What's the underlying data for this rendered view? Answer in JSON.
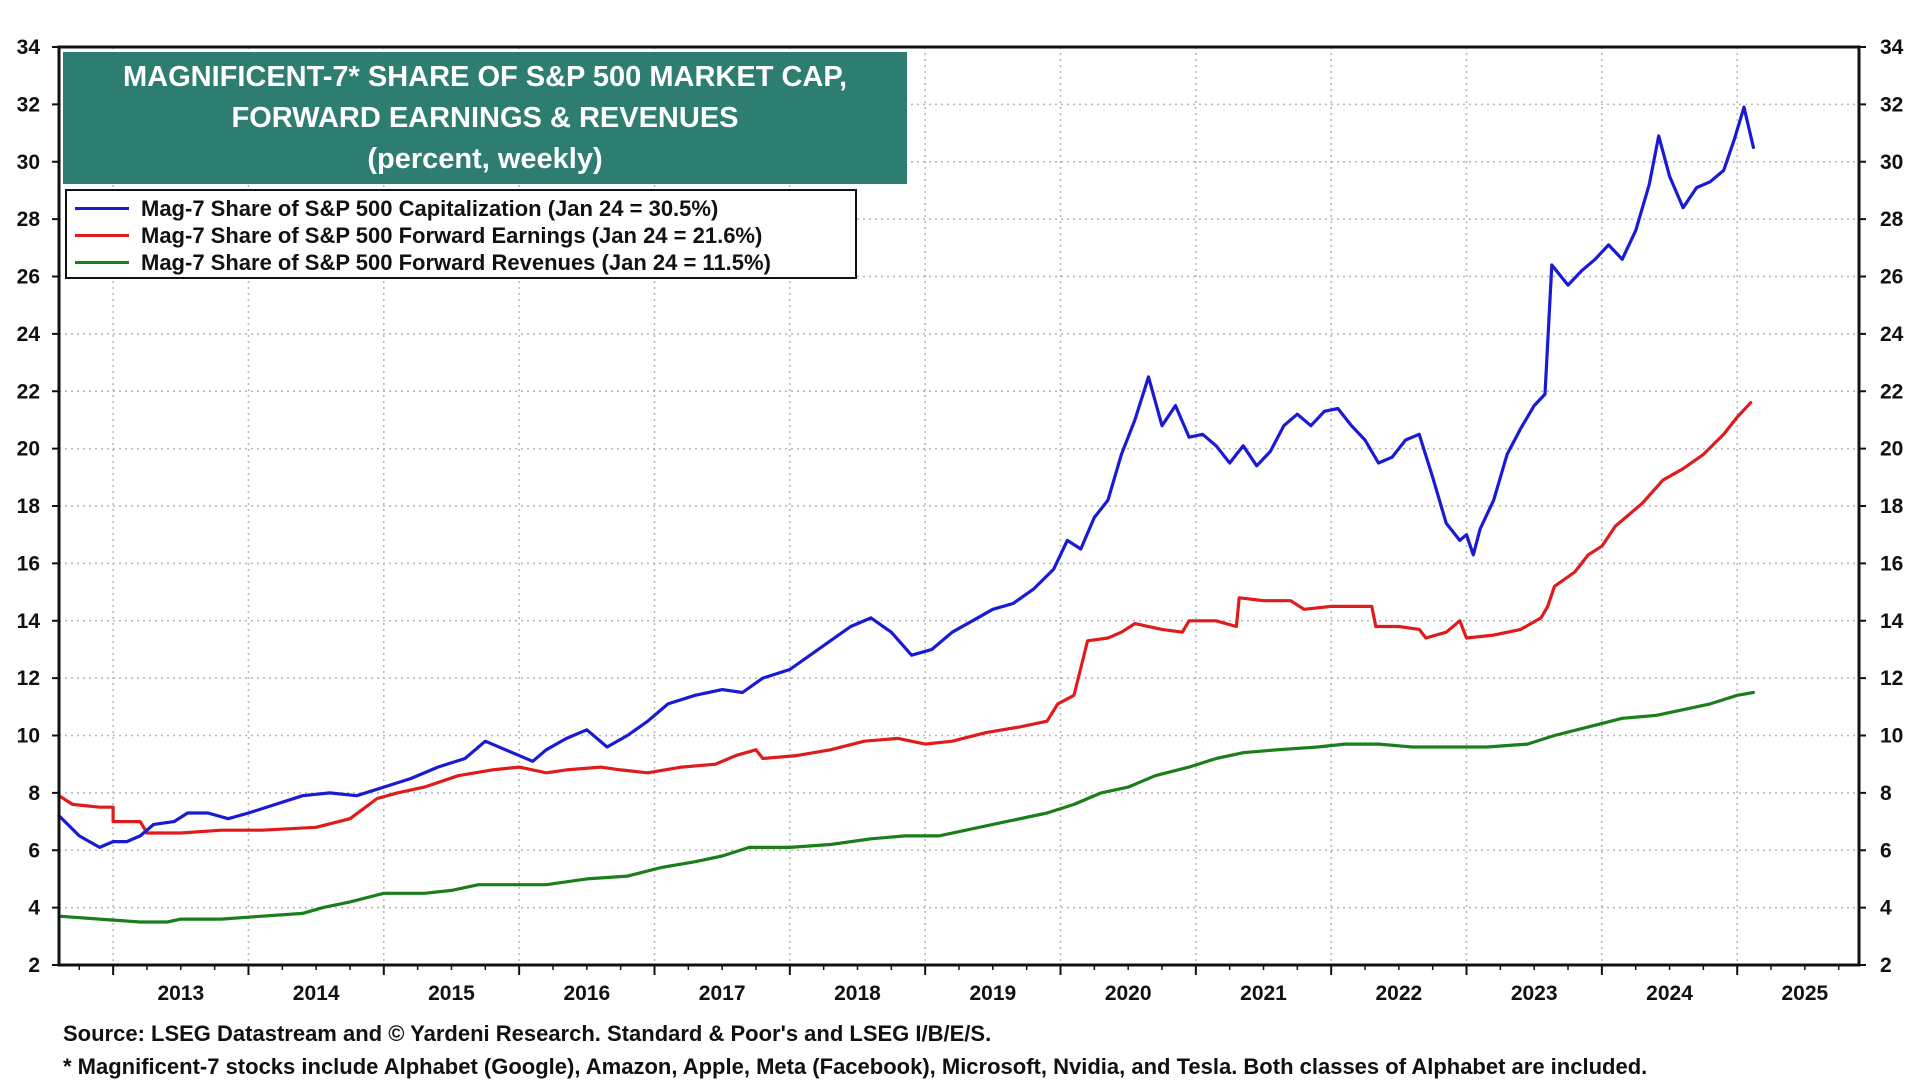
{
  "title": {
    "line1": "MAGNIFICENT-7* SHARE OF S&P 500 MARKET CAP,",
    "line2": "FORWARD EARNINGS & REVENUES",
    "line3": "(percent, weekly)"
  },
  "legend": [
    {
      "label": "Mag-7 Share of S&P 500 Capitalization (Jan 24 = 30.5%)",
      "color": "#1a1ad4"
    },
    {
      "label": "Mag-7 Share of S&P 500 Forward Earnings (Jan 24 = 21.6%)",
      "color": "#e01b1b"
    },
    {
      "label": "Mag-7 Share of S&P 500 Forward Revenues (Jan 24 = 11.5%)",
      "color": "#1a7f1a"
    }
  ],
  "footnotes": {
    "source": "Source: LSEG Datastream and © Yardeni Research. Standard & Poor's and LSEG I/B/E/S.",
    "note": "* Magnificent-7 stocks include Alphabet (Google), Amazon, Apple, Meta (Facebook), Microsoft, Nvidia, and Tesla. Both classes of Alphabet are included."
  },
  "chart_data": {
    "type": "line",
    "title": "MAGNIFICENT-7* SHARE OF S&P 500 MARKET CAP, FORWARD EARNINGS & REVENUES (percent, weekly)",
    "xlabel": "",
    "ylabel": "",
    "xlim": [
      2012.6,
      2025.9
    ],
    "ylim": [
      2,
      34
    ],
    "y_ticks": [
      2,
      4,
      6,
      8,
      10,
      12,
      14,
      16,
      18,
      20,
      22,
      24,
      26,
      28,
      30,
      32,
      34
    ],
    "x_ticks": [
      "2013",
      "2014",
      "2015",
      "2016",
      "2017",
      "2018",
      "2019",
      "2020",
      "2021",
      "2022",
      "2023",
      "2024",
      "2025"
    ],
    "grid": true,
    "series": [
      {
        "name": "Mag-7 Share of S&P 500 Capitalization",
        "color": "#1a1ad4",
        "points": [
          [
            2012.6,
            7.2
          ],
          [
            2012.75,
            6.5
          ],
          [
            2012.9,
            6.1
          ],
          [
            2013.0,
            6.3
          ],
          [
            2013.1,
            6.3
          ],
          [
            2013.2,
            6.5
          ],
          [
            2013.3,
            6.9
          ],
          [
            2013.45,
            7.0
          ],
          [
            2013.55,
            7.3
          ],
          [
            2013.7,
            7.3
          ],
          [
            2013.85,
            7.1
          ],
          [
            2014.0,
            7.3
          ],
          [
            2014.2,
            7.6
          ],
          [
            2014.4,
            7.9
          ],
          [
            2014.6,
            8.0
          ],
          [
            2014.8,
            7.9
          ],
          [
            2015.0,
            8.2
          ],
          [
            2015.2,
            8.5
          ],
          [
            2015.4,
            8.9
          ],
          [
            2015.6,
            9.2
          ],
          [
            2015.75,
            9.8
          ],
          [
            2015.95,
            9.4
          ],
          [
            2016.1,
            9.1
          ],
          [
            2016.2,
            9.5
          ],
          [
            2016.35,
            9.9
          ],
          [
            2016.5,
            10.2
          ],
          [
            2016.65,
            9.6
          ],
          [
            2016.8,
            10.0
          ],
          [
            2016.95,
            10.5
          ],
          [
            2017.1,
            11.1
          ],
          [
            2017.3,
            11.4
          ],
          [
            2017.5,
            11.6
          ],
          [
            2017.65,
            11.5
          ],
          [
            2017.8,
            12.0
          ],
          [
            2018.0,
            12.3
          ],
          [
            2018.15,
            12.8
          ],
          [
            2018.3,
            13.3
          ],
          [
            2018.45,
            13.8
          ],
          [
            2018.6,
            14.1
          ],
          [
            2018.75,
            13.6
          ],
          [
            2018.9,
            12.8
          ],
          [
            2019.05,
            13.0
          ],
          [
            2019.2,
            13.6
          ],
          [
            2019.35,
            14.0
          ],
          [
            2019.5,
            14.4
          ],
          [
            2019.65,
            14.6
          ],
          [
            2019.8,
            15.1
          ],
          [
            2019.95,
            15.8
          ],
          [
            2020.05,
            16.8
          ],
          [
            2020.15,
            16.5
          ],
          [
            2020.25,
            17.6
          ],
          [
            2020.35,
            18.2
          ],
          [
            2020.45,
            19.8
          ],
          [
            2020.55,
            21.0
          ],
          [
            2020.65,
            22.5
          ],
          [
            2020.75,
            20.8
          ],
          [
            2020.85,
            21.5
          ],
          [
            2020.95,
            20.4
          ],
          [
            2021.05,
            20.5
          ],
          [
            2021.15,
            20.1
          ],
          [
            2021.25,
            19.5
          ],
          [
            2021.35,
            20.1
          ],
          [
            2021.45,
            19.4
          ],
          [
            2021.55,
            19.9
          ],
          [
            2021.65,
            20.8
          ],
          [
            2021.75,
            21.2
          ],
          [
            2021.85,
            20.8
          ],
          [
            2021.95,
            21.3
          ],
          [
            2022.05,
            21.4
          ],
          [
            2022.15,
            20.8
          ],
          [
            2022.25,
            20.3
          ],
          [
            2022.35,
            19.5
          ],
          [
            2022.45,
            19.7
          ],
          [
            2022.55,
            20.3
          ],
          [
            2022.65,
            20.5
          ],
          [
            2022.75,
            19.0
          ],
          [
            2022.85,
            17.4
          ],
          [
            2022.95,
            16.8
          ],
          [
            2023.0,
            17.0
          ],
          [
            2023.05,
            16.3
          ],
          [
            2023.1,
            17.2
          ],
          [
            2023.2,
            18.2
          ],
          [
            2023.3,
            19.8
          ],
          [
            2023.4,
            20.7
          ],
          [
            2023.5,
            21.5
          ],
          [
            2023.58,
            21.9
          ],
          [
            2023.63,
            26.4
          ],
          [
            2023.75,
            25.7
          ],
          [
            2023.85,
            26.2
          ],
          [
            2023.95,
            26.6
          ],
          [
            2024.05,
            27.1
          ],
          [
            2024.15,
            26.6
          ],
          [
            2024.25,
            27.6
          ],
          [
            2024.35,
            29.2
          ],
          [
            2024.42,
            30.9
          ],
          [
            2024.5,
            29.5
          ],
          [
            2024.6,
            28.4
          ],
          [
            2024.7,
            29.1
          ],
          [
            2024.8,
            29.3
          ],
          [
            2024.9,
            29.7
          ],
          [
            2024.98,
            30.8
          ],
          [
            2025.05,
            31.9
          ],
          [
            2025.12,
            30.5
          ]
        ]
      },
      {
        "name": "Mag-7 Share of S&P 500 Forward Earnings",
        "color": "#e01b1b",
        "points": [
          [
            2012.6,
            7.9
          ],
          [
            2012.7,
            7.6
          ],
          [
            2012.9,
            7.5
          ],
          [
            2013.0,
            7.5
          ],
          [
            2013.0,
            7.0
          ],
          [
            2013.2,
            7.0
          ],
          [
            2013.25,
            6.6
          ],
          [
            2013.5,
            6.6
          ],
          [
            2013.8,
            6.7
          ],
          [
            2014.1,
            6.7
          ],
          [
            2014.5,
            6.8
          ],
          [
            2014.75,
            7.1
          ],
          [
            2014.95,
            7.8
          ],
          [
            2015.1,
            8.0
          ],
          [
            2015.3,
            8.2
          ],
          [
            2015.55,
            8.6
          ],
          [
            2015.8,
            8.8
          ],
          [
            2016.0,
            8.9
          ],
          [
            2016.2,
            8.7
          ],
          [
            2016.35,
            8.8
          ],
          [
            2016.6,
            8.9
          ],
          [
            2016.75,
            8.8
          ],
          [
            2016.95,
            8.7
          ],
          [
            2017.2,
            8.9
          ],
          [
            2017.45,
            9.0
          ],
          [
            2017.6,
            9.3
          ],
          [
            2017.75,
            9.5
          ],
          [
            2017.8,
            9.2
          ],
          [
            2018.05,
            9.3
          ],
          [
            2018.3,
            9.5
          ],
          [
            2018.55,
            9.8
          ],
          [
            2018.8,
            9.9
          ],
          [
            2019.0,
            9.7
          ],
          [
            2019.2,
            9.8
          ],
          [
            2019.45,
            10.1
          ],
          [
            2019.7,
            10.3
          ],
          [
            2019.9,
            10.5
          ],
          [
            2019.98,
            11.1
          ],
          [
            2020.1,
            11.4
          ],
          [
            2020.2,
            13.3
          ],
          [
            2020.35,
            13.4
          ],
          [
            2020.45,
            13.6
          ],
          [
            2020.55,
            13.9
          ],
          [
            2020.75,
            13.7
          ],
          [
            2020.9,
            13.6
          ],
          [
            2020.95,
            14.0
          ],
          [
            2021.15,
            14.0
          ],
          [
            2021.3,
            13.8
          ],
          [
            2021.32,
            14.8
          ],
          [
            2021.5,
            14.7
          ],
          [
            2021.7,
            14.7
          ],
          [
            2021.8,
            14.4
          ],
          [
            2022.0,
            14.5
          ],
          [
            2022.3,
            14.5
          ],
          [
            2022.33,
            13.8
          ],
          [
            2022.5,
            13.8
          ],
          [
            2022.65,
            13.7
          ],
          [
            2022.7,
            13.4
          ],
          [
            2022.85,
            13.6
          ],
          [
            2022.95,
            14.0
          ],
          [
            2023.0,
            13.4
          ],
          [
            2023.2,
            13.5
          ],
          [
            2023.4,
            13.7
          ],
          [
            2023.55,
            14.1
          ],
          [
            2023.6,
            14.5
          ],
          [
            2023.65,
            15.2
          ],
          [
            2023.8,
            15.7
          ],
          [
            2023.9,
            16.3
          ],
          [
            2024.0,
            16.6
          ],
          [
            2024.1,
            17.3
          ],
          [
            2024.3,
            18.1
          ],
          [
            2024.45,
            18.9
          ],
          [
            2024.6,
            19.3
          ],
          [
            2024.75,
            19.8
          ],
          [
            2024.9,
            20.5
          ],
          [
            2025.0,
            21.1
          ],
          [
            2025.1,
            21.6
          ]
        ]
      },
      {
        "name": "Mag-7 Share of S&P 500 Forward Revenues",
        "color": "#1a7f1a",
        "points": [
          [
            2012.6,
            3.7
          ],
          [
            2012.9,
            3.6
          ],
          [
            2013.2,
            3.5
          ],
          [
            2013.4,
            3.5
          ],
          [
            2013.5,
            3.6
          ],
          [
            2013.8,
            3.6
          ],
          [
            2014.1,
            3.7
          ],
          [
            2014.4,
            3.8
          ],
          [
            2014.55,
            4.0
          ],
          [
            2014.75,
            4.2
          ],
          [
            2015.0,
            4.5
          ],
          [
            2015.3,
            4.5
          ],
          [
            2015.5,
            4.6
          ],
          [
            2015.7,
            4.8
          ],
          [
            2016.0,
            4.8
          ],
          [
            2016.2,
            4.8
          ],
          [
            2016.5,
            5.0
          ],
          [
            2016.8,
            5.1
          ],
          [
            2017.05,
            5.4
          ],
          [
            2017.3,
            5.6
          ],
          [
            2017.5,
            5.8
          ],
          [
            2017.7,
            6.1
          ],
          [
            2018.0,
            6.1
          ],
          [
            2018.3,
            6.2
          ],
          [
            2018.6,
            6.4
          ],
          [
            2018.85,
            6.5
          ],
          [
            2019.1,
            6.5
          ],
          [
            2019.3,
            6.7
          ],
          [
            2019.6,
            7.0
          ],
          [
            2019.9,
            7.3
          ],
          [
            2020.1,
            7.6
          ],
          [
            2020.3,
            8.0
          ],
          [
            2020.5,
            8.2
          ],
          [
            2020.7,
            8.6
          ],
          [
            2020.95,
            8.9
          ],
          [
            2021.15,
            9.2
          ],
          [
            2021.35,
            9.4
          ],
          [
            2021.6,
            9.5
          ],
          [
            2021.9,
            9.6
          ],
          [
            2022.1,
            9.7
          ],
          [
            2022.35,
            9.7
          ],
          [
            2022.6,
            9.6
          ],
          [
            2022.9,
            9.6
          ],
          [
            2023.15,
            9.6
          ],
          [
            2023.45,
            9.7
          ],
          [
            2023.65,
            10.0
          ],
          [
            2023.9,
            10.3
          ],
          [
            2024.15,
            10.6
          ],
          [
            2024.4,
            10.7
          ],
          [
            2024.6,
            10.9
          ],
          [
            2024.8,
            11.1
          ],
          [
            2025.0,
            11.4
          ],
          [
            2025.12,
            11.5
          ]
        ]
      }
    ]
  }
}
